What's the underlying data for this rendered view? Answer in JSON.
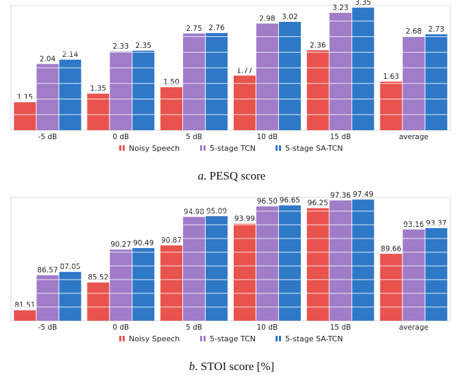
{
  "chart_data": [
    {
      "type": "bar",
      "categories": [
        "-5 dB",
        "0 dB",
        "5 dB",
        "10 dB",
        "15 dB",
        "average"
      ],
      "series": [
        {
          "name": "Noisy Speech",
          "values": [
            1.15,
            1.35,
            1.5,
            1.77,
            2.36,
            1.63
          ]
        },
        {
          "name": "5-stage TCN",
          "values": [
            2.04,
            2.33,
            2.75,
            2.98,
            3.23,
            2.68
          ]
        },
        {
          "name": "5-stage SA-TCN",
          "values": [
            2.14,
            2.35,
            2.76,
            3.02,
            3.35,
            2.73
          ]
        }
      ],
      "value_labels": [
        [
          "1.15",
          "1.35",
          "1.50",
          "1.77",
          "2.36",
          "1.63"
        ],
        [
          "2.04",
          "2.33",
          "2.75",
          "2.98",
          "3.23",
          "2.68"
        ],
        [
          "2.14",
          "2.35",
          "2.76",
          "3.02",
          "3.35",
          "2.73"
        ]
      ],
      "ylim": [
        0.5,
        3.4
      ],
      "grid": true,
      "legend": "bottom",
      "caption_letter": "a",
      "caption_text": ". PESQ score"
    },
    {
      "type": "bar",
      "categories": [
        "-5 dB",
        "0 dB",
        "5 dB",
        "10 dB",
        "15 dB",
        "average"
      ],
      "series": [
        {
          "name": "Noisy Speech",
          "values": [
            81.51,
            85.52,
            90.87,
            93.99,
            96.25,
            89.66
          ]
        },
        {
          "name": "5-stage TCN",
          "values": [
            86.57,
            90.27,
            94.98,
            96.5,
            97.36,
            93.16
          ]
        },
        {
          "name": "5-stage SA-TCN",
          "values": [
            87.05,
            90.49,
            95.09,
            96.65,
            97.49,
            93.37
          ]
        }
      ],
      "value_labels": [
        [
          "81.51",
          "85.52",
          "90.87",
          "93.99",
          "96.25",
          "89.66"
        ],
        [
          "86.57",
          "90.27",
          "94.98",
          "96.50",
          "97.36",
          "93.16"
        ],
        [
          "87.05",
          "90.49",
          "95.09",
          "96.65",
          "97.49",
          "93.37"
        ]
      ],
      "ylim": [
        80.0,
        97.8
      ],
      "grid": true,
      "legend": "bottom",
      "caption_letter": "b",
      "caption_text": ". STOI score [%]"
    }
  ],
  "colors": {
    "noisy": "#e8534e",
    "tcn": "#a07cc9",
    "satcn": "#2f78c8"
  }
}
